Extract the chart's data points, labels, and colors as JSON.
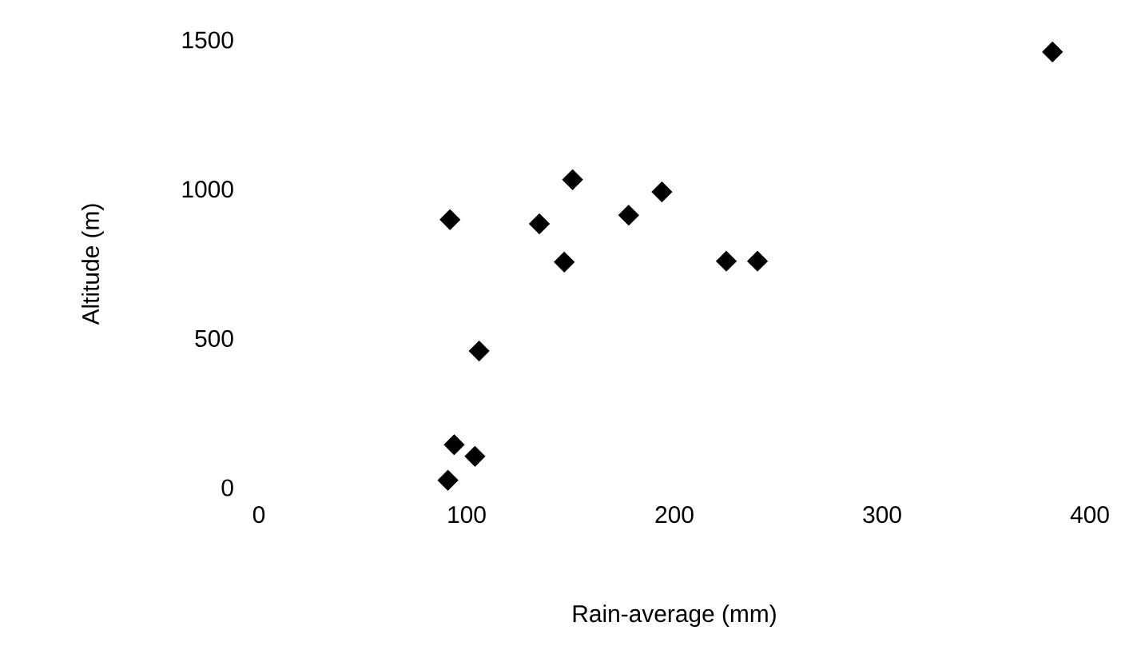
{
  "chart_data": {
    "type": "scatter",
    "xlabel": "Rain-average (mm)",
    "ylabel": "Altitude (m)",
    "x": [
      92,
      151,
      135,
      147,
      106,
      94,
      104,
      91,
      382,
      178,
      194,
      225,
      240
    ],
    "values": [
      898,
      1032,
      884,
      756,
      458,
      144,
      105,
      25,
      1460,
      913,
      991,
      759,
      759
    ],
    "color": "#000000",
    "marker": "diamond",
    "xlim": [
      0,
      400
    ],
    "ylim": [
      0,
      1500
    ],
    "xticks": [
      0,
      100,
      200,
      300,
      400
    ],
    "yticks": [
      0,
      500,
      1000,
      1500
    ]
  }
}
